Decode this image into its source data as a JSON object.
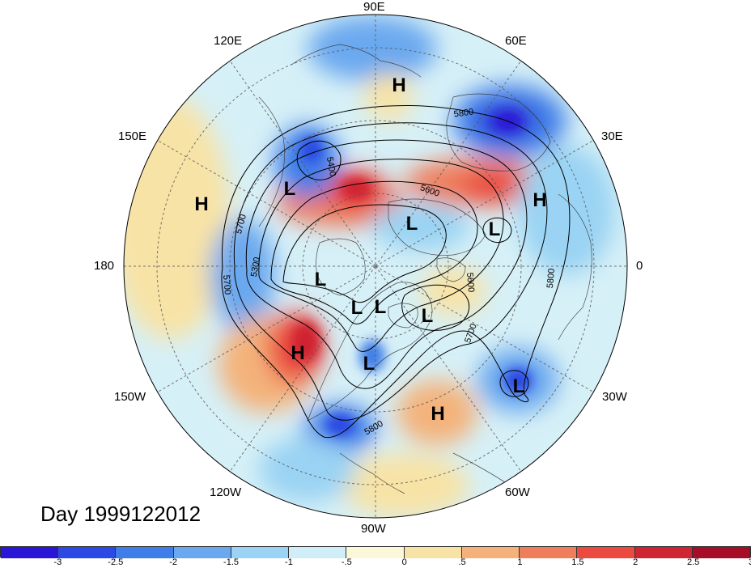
{
  "map": {
    "longitude_labels": {
      "top": "90E",
      "right": "0",
      "bottom": "90W",
      "left": "180",
      "upper_left": "120E",
      "upper_right": "60E",
      "mid_left": "150E",
      "mid_right": "30E",
      "lower_left": "150W",
      "lower_right": "30W",
      "bottom_left": "120W",
      "bottom_right": "60W"
    },
    "pressure_centers": [
      {
        "label": "H"
      },
      {
        "label": "H"
      },
      {
        "label": "H"
      },
      {
        "label": "H"
      },
      {
        "label": "H"
      },
      {
        "label": "L"
      },
      {
        "label": "L"
      },
      {
        "label": "L"
      },
      {
        "label": "L"
      },
      {
        "label": "L"
      },
      {
        "label": "L"
      },
      {
        "label": "L"
      },
      {
        "label": "L"
      },
      {
        "label": "L"
      }
    ],
    "contour_labels": [
      "5800",
      "5400",
      "5600",
      "5700",
      "5300",
      "5700",
      "5600",
      "5700",
      "5800",
      "5800"
    ],
    "date_text": "Day 1999122012"
  },
  "colorbar": {
    "colors": [
      "#2a16d6",
      "#2c49e3",
      "#3f7ee8",
      "#6aa8ef",
      "#9ad3f3",
      "#cfeef7",
      "#fbf8d9",
      "#f8e3a6",
      "#f4b27a",
      "#ef7e5d",
      "#ea4a40",
      "#cf2431",
      "#a50e26"
    ],
    "ticks": [
      "-3",
      "-2.5",
      "-2",
      "-1.5",
      "-1",
      "-.5",
      "0",
      ".5",
      "1",
      "1.5",
      "2",
      "2.5",
      "3"
    ]
  }
}
